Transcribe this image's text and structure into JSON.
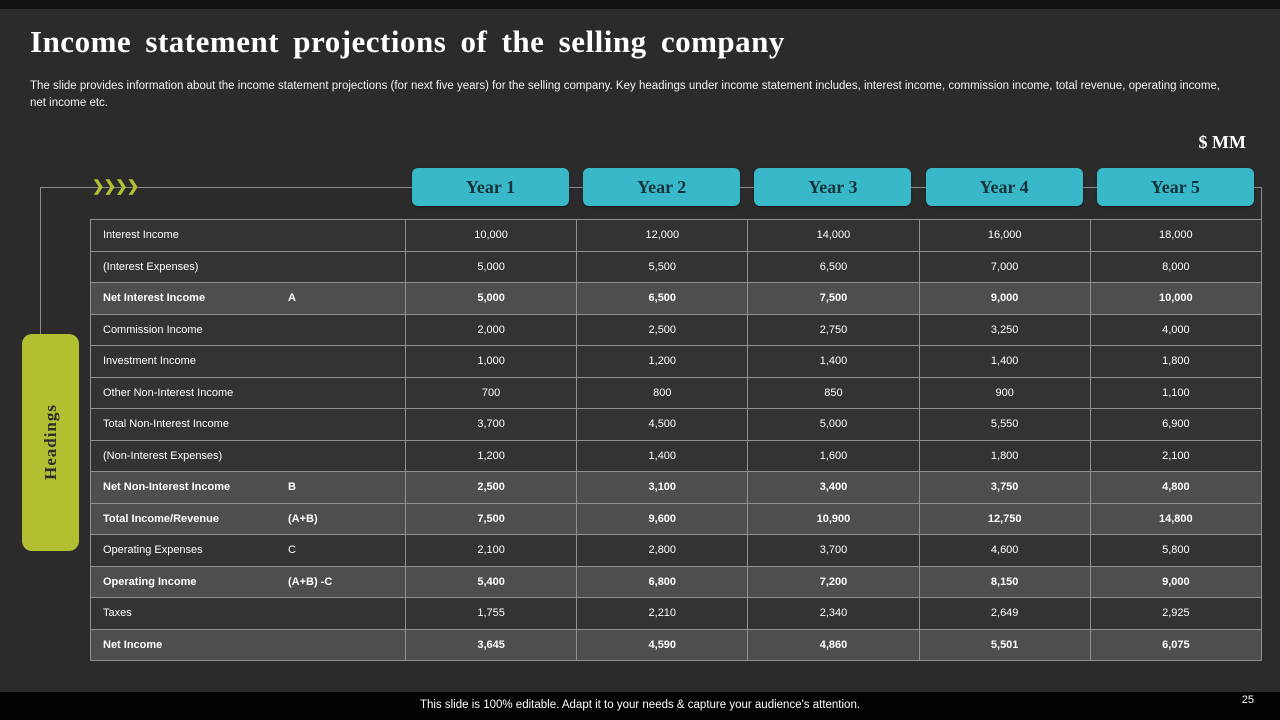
{
  "slide": {
    "title": "Income statement projections of the selling company",
    "description": "The slide provides information about the income statement projections (for next five years) for the selling company. Key headings under income statement includes, interest income, commission income, total revenue, operating income, net income etc.",
    "unit_label": "$ MM",
    "headings_label": "Headings",
    "arrows_icon": "❯❯❯❯",
    "footer_note": "This slide is 100% editable. Adapt it to your needs & capture your audience's attention.",
    "page_number": "25"
  },
  "colors": {
    "accent_teal": "#38b8c9",
    "accent_lime": "#b2bf30",
    "row_normal": "#333333",
    "row_highlight": "#4e4e4e",
    "background": "#2b2b2b"
  },
  "table": {
    "columns": [
      "Year 1",
      "Year 2",
      "Year 3",
      "Year 4",
      "Year 5"
    ],
    "rows": [
      {
        "label": "Interest Income",
        "code": "",
        "bold": false,
        "values": [
          "10,000",
          "12,000",
          "14,000",
          "16,000",
          "18,000"
        ]
      },
      {
        "label": "(Interest Expenses)",
        "code": "",
        "bold": false,
        "values": [
          "5,000",
          "5,500",
          "6,500",
          "7,000",
          "8,000"
        ]
      },
      {
        "label": "Net Interest Income",
        "code": "A",
        "bold": true,
        "values": [
          "5,000",
          "6,500",
          "7,500",
          "9,000",
          "10,000"
        ]
      },
      {
        "label": "Commission Income",
        "code": "",
        "bold": false,
        "values": [
          "2,000",
          "2,500",
          "2,750",
          "3,250",
          "4,000"
        ]
      },
      {
        "label": "Investment Income",
        "code": "",
        "bold": false,
        "values": [
          "1,000",
          "1,200",
          "1,400",
          "1,400",
          "1,800"
        ]
      },
      {
        "label": "Other Non-Interest Income",
        "code": "",
        "bold": false,
        "values": [
          "700",
          "800",
          "850",
          "900",
          "1,100"
        ]
      },
      {
        "label": "Total Non-Interest Income",
        "code": "",
        "bold": false,
        "values": [
          "3,700",
          "4,500",
          "5,000",
          "5,550",
          "6,900"
        ]
      },
      {
        "label": "(Non-Interest Expenses)",
        "code": "",
        "bold": false,
        "values": [
          "1,200",
          "1,400",
          "1,600",
          "1,800",
          "2,100"
        ]
      },
      {
        "label": "Net Non-Interest Income",
        "code": "B",
        "bold": true,
        "values": [
          "2,500",
          "3,100",
          "3,400",
          "3,750",
          "4,800"
        ]
      },
      {
        "label": "Total Income/Revenue",
        "code": "(A+B)",
        "bold": true,
        "values": [
          "7,500",
          "9,600",
          "10,900",
          "12,750",
          "14,800"
        ]
      },
      {
        "label": "Operating Expenses",
        "code": "C",
        "bold": false,
        "values": [
          "2,100",
          "2,800",
          "3,700",
          "4,600",
          "5,800"
        ]
      },
      {
        "label": "Operating Income",
        "code": "(A+B) -C",
        "bold": true,
        "values": [
          "5,400",
          "6,800",
          "7,200",
          "8,150",
          "9,000"
        ]
      },
      {
        "label": "Taxes",
        "code": "",
        "bold": false,
        "values": [
          "1,755",
          "2,210",
          "2,340",
          "2,649",
          "2,925"
        ]
      },
      {
        "label": "Net Income",
        "code": "",
        "bold": true,
        "values": [
          "3,645",
          "4,590",
          "4,860",
          "5,501",
          "6,075"
        ]
      }
    ]
  }
}
